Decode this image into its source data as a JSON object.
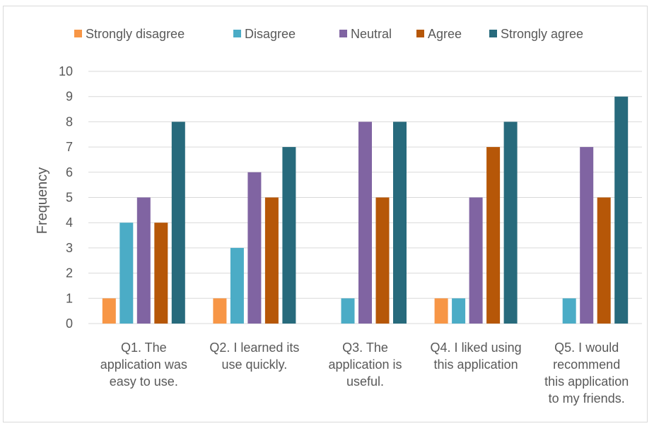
{
  "chart_data": {
    "type": "bar",
    "title": "",
    "xlabel": "",
    "ylabel": "Frequency",
    "ylim": [
      0,
      10
    ],
    "yticks": [
      "0",
      "1",
      "2",
      "3",
      "4",
      "5",
      "6",
      "7",
      "8",
      "9",
      "10"
    ],
    "grid": true,
    "legend_position": "top",
    "categories": [
      [
        "Q1. The",
        "application was",
        "easy to use."
      ],
      [
        "Q2. I learned its",
        "use quickly."
      ],
      [
        "Q3. The",
        "application is",
        "useful."
      ],
      [
        "Q4. I liked using",
        "this application"
      ],
      [
        "Q5. I would",
        "recommend",
        "this application",
        "to my friends."
      ]
    ],
    "series": [
      {
        "name": "Strongly disagree",
        "color": "#f79646",
        "values": [
          1,
          1,
          0,
          1,
          0
        ]
      },
      {
        "name": "Disagree",
        "color": "#4bacc6",
        "values": [
          4,
          3,
          1,
          1,
          1
        ]
      },
      {
        "name": "Neutral",
        "color": "#8064a2",
        "values": [
          5,
          6,
          8,
          5,
          7
        ]
      },
      {
        "name": "Agree",
        "color": "#b65708",
        "values": [
          4,
          5,
          5,
          7,
          5
        ]
      },
      {
        "name": "Strongly agree",
        "color": "#276a7c",
        "values": [
          8,
          7,
          8,
          8,
          9
        ]
      }
    ]
  }
}
